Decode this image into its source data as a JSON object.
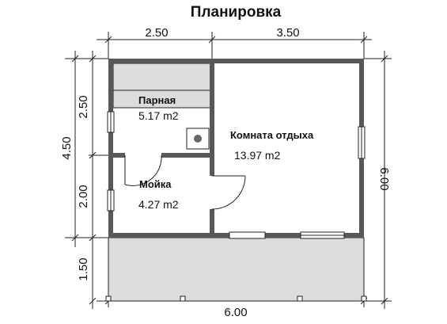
{
  "title": "Планировка",
  "dimensions": {
    "top": [
      "2.50",
      "3.50"
    ],
    "bottom": "6.00",
    "left_outer": "4.50",
    "left_inner": [
      "2.50",
      "2.00",
      "1.50"
    ],
    "right": "6.00"
  },
  "rooms": [
    {
      "name": "Парная",
      "area": "5.17 m2"
    },
    {
      "name": "Комната отдыха",
      "area": "13.97 m2"
    },
    {
      "name": "Мойка",
      "area": "4.27 m2"
    }
  ],
  "colors": {
    "wall": "#585858",
    "floor": "#dcdcdc",
    "line": "#222222",
    "stove": "#666666"
  }
}
